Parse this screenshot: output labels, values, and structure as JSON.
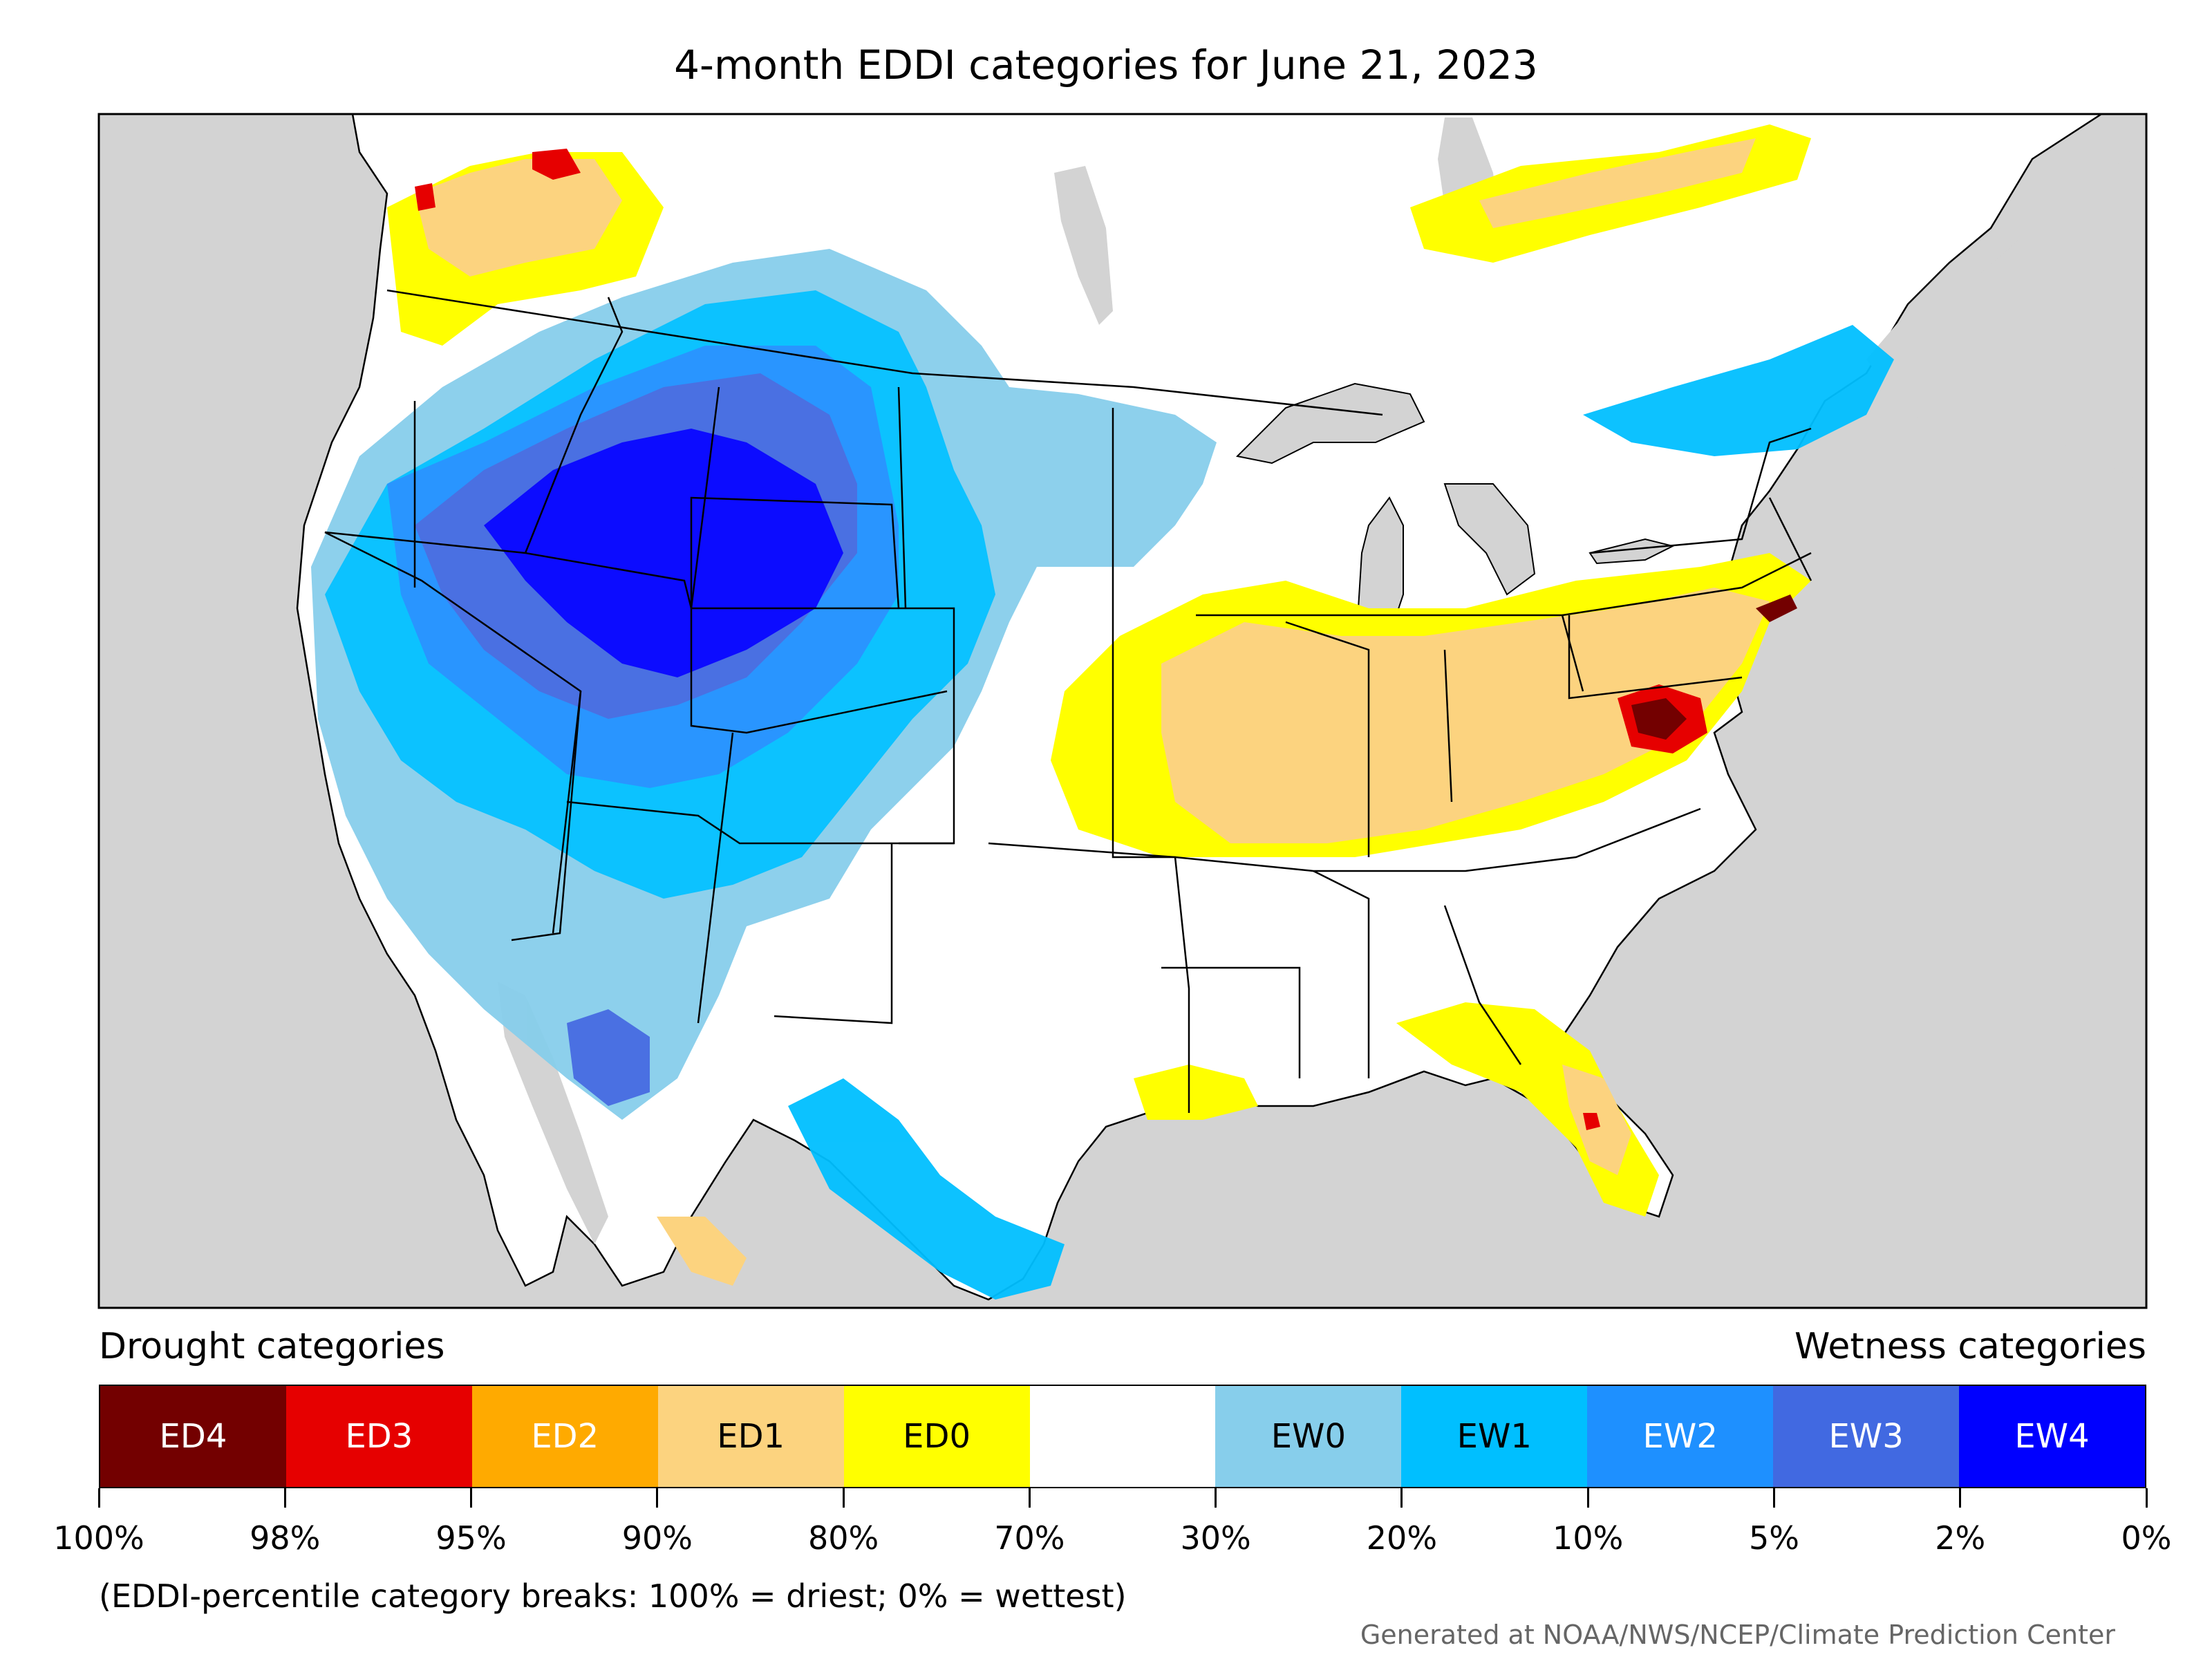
{
  "title": "4-month EDDI categories for June 21, 2023",
  "legend": {
    "drought_heading": "Drought categories",
    "wetness_heading": "Wetness categories",
    "categories": [
      {
        "label": "ED4",
        "color": "#730000",
        "text_color": "#ffffff"
      },
      {
        "label": "ED3",
        "color": "#e60000",
        "text_color": "#ffffff"
      },
      {
        "label": "ED2",
        "color": "#ffaa00",
        "text_color": "#ffffff"
      },
      {
        "label": "ED1",
        "color": "#fcd37f",
        "text_color": "#000000"
      },
      {
        "label": "ED0",
        "color": "#ffff00",
        "text_color": "#000000"
      },
      {
        "label": "",
        "color": "#ffffff",
        "text_color": "#000000"
      },
      {
        "label": "EW0",
        "color": "#87ceeb",
        "text_color": "#000000"
      },
      {
        "label": "EW1",
        "color": "#00bfff",
        "text_color": "#000000"
      },
      {
        "label": "EW2",
        "color": "#1e90ff",
        "text_color": "#ffffff"
      },
      {
        "label": "EW3",
        "color": "#4169e1",
        "text_color": "#ffffff"
      },
      {
        "label": "EW4",
        "color": "#0000ff",
        "text_color": "#ffffff"
      }
    ],
    "breaks": [
      "100%",
      "98%",
      "95%",
      "90%",
      "80%",
      "70%",
      "30%",
      "20%",
      "10%",
      "5%",
      "2%",
      "0%"
    ],
    "note": "(EDDI-percentile category breaks: 100% = driest; 0% = wettest)"
  },
  "credit": "Generated at NOAA/NWS/NCEP/Climate Prediction Center",
  "map": {
    "ocean_color": "#d3d3d3",
    "land_color": "#ffffff",
    "border_color": "#000000"
  }
}
